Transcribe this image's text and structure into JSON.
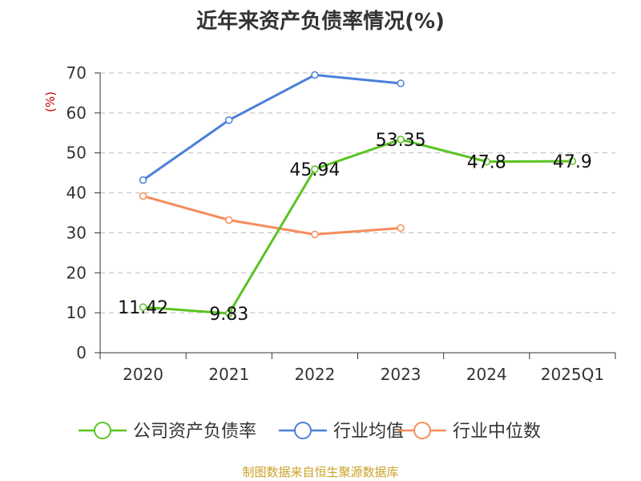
{
  "title": "近年来资产负债率情况(%)",
  "footer": "制图数据来自恒生聚源数据库",
  "chart_data": {
    "type": "line",
    "title": "近年来资产负债率情况(%)",
    "ylabel": "(%)",
    "xlabel": "",
    "categories": [
      "2020",
      "2021",
      "2022",
      "2023",
      "2024",
      "2025Q1"
    ],
    "ylim": [
      0,
      70
    ],
    "yticks": [
      0,
      10,
      20,
      30,
      40,
      50,
      60,
      70
    ],
    "grid": "horizontal dashed",
    "legend_position": "bottom",
    "series": [
      {
        "name": "公司资产负债率",
        "color": "#5ac421",
        "values": [
          11.42,
          9.83,
          45.94,
          53.35,
          47.8,
          47.9
        ],
        "labels": [
          "11.42",
          "9.83",
          "45.94",
          "53.35",
          "47.8",
          "47.9"
        ]
      },
      {
        "name": "行业均值",
        "color": "#4b80d8",
        "values": [
          43.2,
          58.2,
          69.5,
          67.4,
          null,
          null
        ]
      },
      {
        "name": "行业中位数",
        "color": "#f58c5a",
        "values": [
          39.2,
          33.2,
          29.6,
          31.2,
          null,
          null
        ]
      }
    ]
  }
}
